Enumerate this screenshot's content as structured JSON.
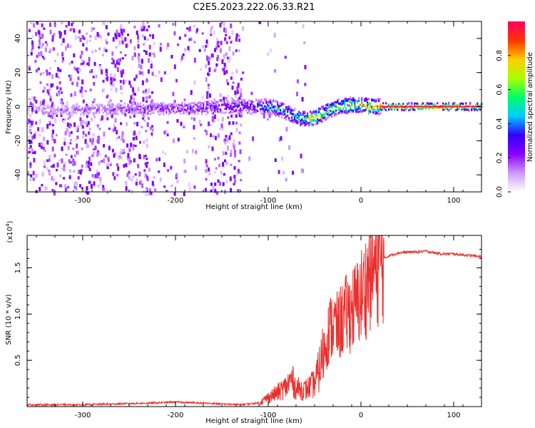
{
  "title": "C2E5.2023.222.06.33.R21",
  "chart_data": [
    {
      "type": "heatmap",
      "xlabel": "Height of straight line (km)",
      "ylabel": "Frequency (Hz)",
      "xlim": [
        -360,
        130
      ],
      "ylim": [
        -50,
        50
      ],
      "xticks": [
        -300,
        -200,
        -100,
        0,
        100
      ],
      "yticks": [
        -40,
        -20,
        0,
        20,
        40
      ],
      "colorbar": {
        "label": "Normalized spectral amplitude",
        "range": [
          0,
          1
        ],
        "ticks": [
          0.0,
          0.2,
          0.4,
          0.6,
          0.8
        ]
      },
      "ridge": {
        "description": "spectral peak frequency vs height",
        "x": [
          -360,
          -300,
          -200,
          -130,
          -100,
          -85,
          -75,
          -65,
          -55,
          -45,
          -35,
          -25,
          -10,
          0,
          10,
          30,
          60,
          130
        ],
        "frequency": [
          -2,
          -2,
          -1,
          0,
          0,
          -2,
          -5,
          -7,
          -7,
          -5,
          -2,
          0,
          1,
          1,
          0,
          0,
          0,
          0
        ],
        "amplitude": [
          0.12,
          0.18,
          0.25,
          0.35,
          0.55,
          0.6,
          0.55,
          0.7,
          0.8,
          0.85,
          0.7,
          0.8,
          0.85,
          0.9,
          0.92,
          0.95,
          0.95,
          0.95
        ]
      }
    },
    {
      "type": "line",
      "xlabel": "Height of straight line (km)",
      "ylabel": "SNR (10 * v/v)",
      "yscale_label": "(x10",
      "yscale_exp": "4",
      "yscale_close": ")",
      "xlim": [
        -360,
        130
      ],
      "ylim": [
        0,
        1.85
      ],
      "xticks": [
        -300,
        -200,
        -100,
        0,
        100
      ],
      "yticks": [
        0.5,
        1.0,
        1.5
      ],
      "color": "#e8312f",
      "series": [
        {
          "name": "SNR",
          "x": [
            -360,
            -300,
            -220,
            -200,
            -130,
            -110,
            -100,
            -90,
            -80,
            -75,
            -70,
            -60,
            -50,
            -45,
            -40,
            -35,
            -30,
            -25,
            -20,
            -15,
            -10,
            -5,
            0,
            5,
            10,
            15,
            20,
            25,
            30,
            40,
            50,
            60,
            70,
            80,
            90,
            100,
            110,
            120,
            130
          ],
          "y": [
            0.02,
            0.02,
            0.04,
            0.05,
            0.02,
            0.04,
            0.1,
            0.15,
            0.22,
            0.3,
            0.2,
            0.18,
            0.25,
            0.4,
            0.6,
            0.8,
            0.9,
            0.85,
            0.95,
            1.0,
            1.05,
            1.1,
            1.2,
            1.3,
            1.45,
            1.5,
            1.55,
            1.6,
            1.63,
            1.66,
            1.67,
            1.67,
            1.68,
            1.66,
            1.65,
            1.65,
            1.64,
            1.63,
            1.62
          ]
        }
      ]
    }
  ],
  "colors": {
    "colormap": [
      "#ffffff",
      "#cc99ff",
      "#8800ff",
      "#3300ff",
      "#00ccff",
      "#00ff66",
      "#aaff00",
      "#ffcc00",
      "#ff3300",
      "#ff0066"
    ]
  }
}
